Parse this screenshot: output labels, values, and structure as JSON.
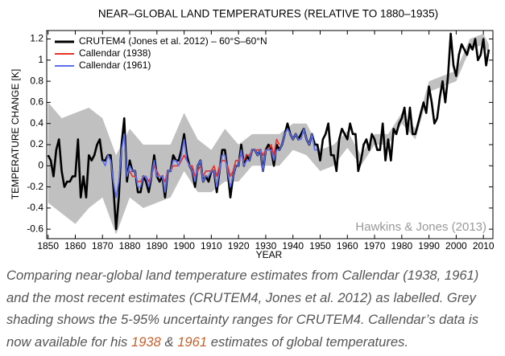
{
  "chart_data": {
    "type": "line",
    "title": "NEAR–GLOBAL LAND TEMPERATURES (RELATIVE TO 1880–1935)",
    "xlabel": "YEAR",
    "ylabel": "TEMPERATURE CHANGE  [K]",
    "annotation": "Hawkins & Jones (2013)",
    "legend": "upper left",
    "xlim": [
      1849.5,
      2013.5
    ],
    "ylim": [
      -0.69,
      1.28
    ],
    "xticks": [
      1850,
      1860,
      1870,
      1880,
      1890,
      1900,
      1910,
      1920,
      1930,
      1940,
      1950,
      1960,
      1970,
      1980,
      1990,
      2000,
      2010
    ],
    "yticks": [
      -0.6,
      -0.4,
      -0.2,
      0,
      0.2,
      0.4,
      0.6,
      0.8,
      1,
      1.2
    ],
    "uncertainty": {
      "color": "#c0c0c0",
      "x": [
        1850,
        1855,
        1860,
        1865,
        1870,
        1875,
        1880,
        1885,
        1890,
        1895,
        1900,
        1905,
        1910,
        1915,
        1920,
        1925,
        1930,
        1935,
        1940,
        1945,
        1950,
        1955,
        1960,
        1965,
        1970,
        1975,
        1980,
        1985,
        1990,
        1995,
        2000,
        2005,
        2010,
        2012
      ],
      "lower": [
        -0.35,
        -0.45,
        -0.55,
        -0.4,
        -0.3,
        -0.65,
        -0.3,
        -0.4,
        -0.35,
        -0.3,
        -0.05,
        -0.25,
        -0.25,
        -0.15,
        -0.15,
        0.0,
        0.0,
        0.0,
        0.15,
        0.1,
        -0.05,
        0.0,
        0.17,
        0.0,
        0.2,
        0.2,
        0.4,
        0.25,
        0.7,
        0.75,
        0.8,
        1.1,
        1.15,
        1.05
      ],
      "upper": [
        0.6,
        0.45,
        0.5,
        0.55,
        0.45,
        0.1,
        0.35,
        0.2,
        0.2,
        0.2,
        0.5,
        0.25,
        0.15,
        0.35,
        0.2,
        0.3,
        0.3,
        0.3,
        0.4,
        0.4,
        0.15,
        0.2,
        0.33,
        0.1,
        0.3,
        0.3,
        0.5,
        0.35,
        0.8,
        0.85,
        0.9,
        1.2,
        1.25,
        1.15
      ]
    },
    "series": [
      {
        "name": "CRUTEM4 (Jones et al. 2012) – 60°S–60°N",
        "color": "#000000",
        "x": [
          1850,
          1851,
          1852,
          1853,
          1854,
          1855,
          1856,
          1857,
          1858,
          1859,
          1860,
          1861,
          1862,
          1863,
          1864,
          1865,
          1866,
          1867,
          1868,
          1869,
          1870,
          1871,
          1872,
          1873,
          1874,
          1875,
          1876,
          1877,
          1878,
          1879,
          1880,
          1881,
          1882,
          1883,
          1884,
          1885,
          1886,
          1887,
          1888,
          1889,
          1890,
          1891,
          1892,
          1893,
          1894,
          1895,
          1896,
          1897,
          1898,
          1899,
          1900,
          1901,
          1902,
          1903,
          1904,
          1905,
          1906,
          1907,
          1908,
          1909,
          1910,
          1911,
          1912,
          1913,
          1914,
          1915,
          1916,
          1917,
          1918,
          1919,
          1920,
          1921,
          1922,
          1923,
          1924,
          1925,
          1926,
          1927,
          1928,
          1929,
          1930,
          1931,
          1932,
          1933,
          1934,
          1935,
          1936,
          1937,
          1938,
          1939,
          1940,
          1941,
          1942,
          1943,
          1944,
          1945,
          1946,
          1947,
          1948,
          1949,
          1950,
          1951,
          1952,
          1953,
          1954,
          1955,
          1956,
          1957,
          1958,
          1959,
          1960,
          1961,
          1962,
          1963,
          1964,
          1965,
          1966,
          1967,
          1968,
          1969,
          1970,
          1971,
          1972,
          1973,
          1974,
          1975,
          1976,
          1977,
          1978,
          1979,
          1980,
          1981,
          1982,
          1983,
          1984,
          1985,
          1986,
          1987,
          1988,
          1989,
          1990,
          1991,
          1992,
          1993,
          1994,
          1995,
          1996,
          1997,
          1998,
          1999,
          2000,
          2001,
          2002,
          2003,
          2004,
          2005,
          2006,
          2007,
          2008,
          2009,
          2010,
          2011,
          2012
        ],
        "values": [
          0.1,
          0.05,
          -0.1,
          0.15,
          0.25,
          -0.05,
          -0.2,
          -0.15,
          -0.15,
          -0.1,
          -0.1,
          0.25,
          -0.3,
          -0.1,
          -0.3,
          0.1,
          0.05,
          0.1,
          0.2,
          0.25,
          0.05,
          0.05,
          0.1,
          0.1,
          -0.2,
          -0.6,
          -0.3,
          0.2,
          0.45,
          -0.15,
          0.05,
          -0.05,
          -0.05,
          -0.25,
          -0.25,
          -0.1,
          -0.15,
          -0.25,
          -0.1,
          0.1,
          -0.1,
          -0.15,
          -0.1,
          -0.3,
          -0.05,
          -0.05,
          0.1,
          0.05,
          0.05,
          0.15,
          0.3,
          0.1,
          0.0,
          -0.05,
          -0.2,
          0.0,
          0.05,
          -0.15,
          -0.1,
          -0.15,
          -0.05,
          -0.05,
          -0.25,
          -0.05,
          0.15,
          0.15,
          -0.05,
          -0.3,
          -0.1,
          0.0,
          0.0,
          0.2,
          0.0,
          0.1,
          0.05,
          0.15,
          0.15,
          0.1,
          0.15,
          -0.05,
          0.15,
          0.2,
          0.15,
          0.0,
          0.2,
          0.15,
          0.2,
          0.3,
          0.4,
          0.3,
          0.25,
          0.3,
          0.25,
          0.3,
          0.35,
          0.25,
          0.2,
          0.3,
          0.2,
          0.2,
          0.05,
          0.25,
          0.3,
          0.4,
          0.1,
          0.1,
          -0.05,
          0.25,
          0.35,
          0.3,
          0.25,
          0.4,
          0.3,
          0.3,
          -0.05,
          0.05,
          0.2,
          0.25,
          0.15,
          0.3,
          0.25,
          0.15,
          0.15,
          0.4,
          0.05,
          0.25,
          0.05,
          0.35,
          0.3,
          0.4,
          0.45,
          0.55,
          0.3,
          0.55,
          0.3,
          0.3,
          0.4,
          0.5,
          0.6,
          0.5,
          0.75,
          0.6,
          0.4,
          0.45,
          0.65,
          0.8,
          0.6,
          0.85,
          1.25,
          0.95,
          0.85,
          1.05,
          1.15,
          1.1,
          1.05,
          1.15,
          1.1,
          1.2,
          1.0,
          1.05,
          1.2,
          0.95,
          1.1
        ]
      },
      {
        "name": "Callendar (1938)",
        "color": "#e8302a",
        "x": [
          1880,
          1881,
          1882,
          1883,
          1884,
          1885,
          1886,
          1887,
          1888,
          1889,
          1890,
          1891,
          1892,
          1893,
          1894,
          1895,
          1896,
          1897,
          1898,
          1899,
          1900,
          1901,
          1902,
          1903,
          1904,
          1905,
          1906,
          1907,
          1908,
          1909,
          1910,
          1911,
          1912,
          1913,
          1914,
          1915,
          1916,
          1917,
          1918,
          1919,
          1920,
          1921,
          1922,
          1923,
          1924,
          1925,
          1926,
          1927,
          1928,
          1929,
          1930,
          1931,
          1932,
          1933,
          1934,
          1935
        ],
        "values": [
          -0.05,
          -0.1,
          -0.1,
          -0.15,
          -0.15,
          -0.1,
          -0.1,
          -0.15,
          -0.1,
          0.0,
          -0.05,
          -0.1,
          -0.1,
          -0.15,
          -0.05,
          -0.05,
          0.0,
          0.0,
          0.0,
          0.05,
          0.1,
          0.05,
          0.0,
          0.0,
          -0.1,
          -0.05,
          0.0,
          -0.1,
          -0.05,
          -0.05,
          -0.05,
          0.0,
          -0.1,
          0.0,
          0.05,
          0.05,
          0.0,
          -0.1,
          -0.05,
          0.05,
          0.05,
          0.1,
          0.05,
          0.1,
          0.1,
          0.15,
          0.15,
          0.15,
          0.15,
          0.1,
          0.15,
          0.15,
          0.2,
          0.1,
          0.25,
          0.2
        ]
      },
      {
        "name": "Callendar (1961)",
        "color": "#5a6ef0",
        "x": [
          1870,
          1871,
          1872,
          1873,
          1874,
          1875,
          1876,
          1877,
          1878,
          1879,
          1880,
          1881,
          1882,
          1883,
          1884,
          1885,
          1886,
          1887,
          1888,
          1889,
          1890,
          1891,
          1892,
          1893,
          1894,
          1895,
          1896,
          1897,
          1898,
          1899,
          1900,
          1901,
          1902,
          1903,
          1904,
          1905,
          1906,
          1907,
          1908,
          1909,
          1910,
          1911,
          1912,
          1913,
          1914,
          1915,
          1916,
          1917,
          1918,
          1919,
          1920,
          1921,
          1922,
          1923,
          1924,
          1925,
          1926,
          1927,
          1928,
          1929,
          1930,
          1931,
          1932,
          1933,
          1934,
          1935,
          1936,
          1937,
          1938,
          1939,
          1940,
          1941,
          1942,
          1943,
          1944,
          1945,
          1946,
          1947,
          1948,
          1949
        ],
        "values": [
          0.05,
          0.0,
          0.1,
          0.05,
          -0.15,
          -0.3,
          -0.15,
          0.15,
          0.3,
          -0.1,
          0.0,
          -0.05,
          -0.05,
          -0.2,
          -0.2,
          -0.1,
          -0.1,
          -0.2,
          -0.1,
          0.05,
          -0.1,
          -0.1,
          -0.1,
          -0.25,
          -0.05,
          -0.05,
          0.05,
          0.05,
          0.0,
          0.1,
          0.25,
          0.05,
          0.0,
          -0.05,
          -0.15,
          0.0,
          0.05,
          -0.15,
          -0.1,
          -0.1,
          -0.05,
          -0.05,
          -0.2,
          -0.05,
          0.1,
          0.1,
          -0.05,
          -0.2,
          -0.1,
          0.0,
          0.0,
          0.15,
          0.0,
          0.05,
          0.05,
          0.15,
          0.15,
          0.1,
          0.15,
          -0.05,
          0.15,
          0.15,
          0.15,
          0.05,
          0.15,
          0.15,
          0.2,
          0.3,
          0.35,
          0.3,
          0.25,
          0.3,
          0.25,
          0.25,
          0.35,
          0.25,
          0.2,
          0.3,
          0.15,
          0.15
        ]
      }
    ]
  },
  "caption": {
    "text": "Comparing near-global land temperature estimates from Callendar (1938, 1961) and the most recent estimates (CRUTEM4, Jones et al. 2012) as labelled. Grey shading shows the 5-95% uncertainty ranges for CRUTEM4. Callendar’s data is now available for his ",
    "link_1938": "1938",
    "joiner": " & ",
    "link_1961": "1961",
    "ending": " estimates of global temperatures."
  }
}
